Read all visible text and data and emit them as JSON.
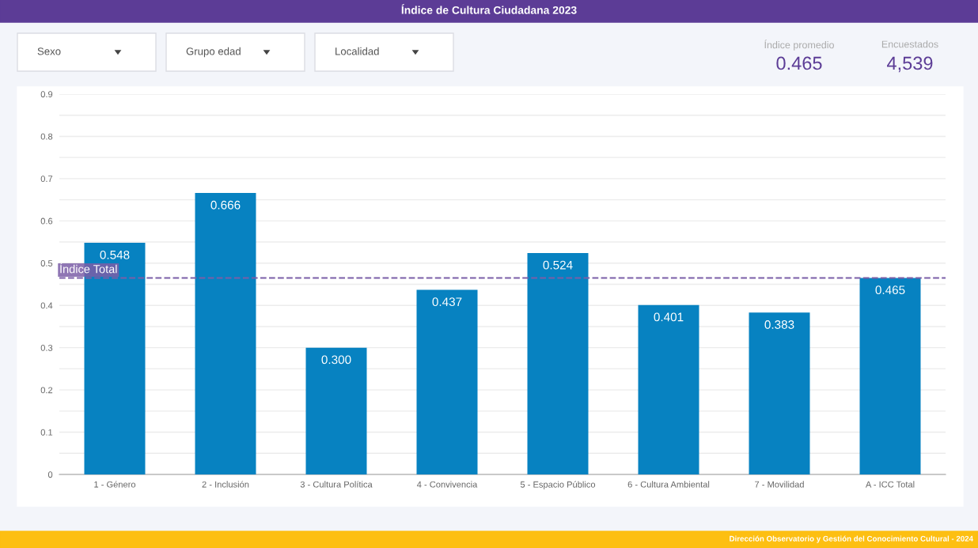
{
  "chart_data": [
    {
      "type": "other",
      "annotations": [
        "Sexo",
        "Grupo edad",
        "Localidad"
      ]
    },
    {
      "type": "other",
      "annotations": [
        "Índice promedio",
        "0.465",
        "Encuestados",
        "4,539"
      ]
    },
    {
      "type": "bar",
      "title": "Índice de Cultura Ciudadana 2023",
      "categories": [
        "1 - Género",
        "2 - Inclusión",
        "3 - Cultura Política",
        "4 - Convivencia",
        "5 - Espacio Público",
        "6 - Cultura Ambiental",
        "7 - Movilidad",
        "A - ICC Total"
      ],
      "values": [
        0.548,
        0.666,
        0.3,
        0.437,
        0.524,
        0.401,
        0.383,
        0.465
      ],
      "color": "#0782c1",
      "value_labels": [
        "0.548",
        "0.666",
        "0.300",
        "0.437",
        "0.524",
        "0.401",
        "0.383",
        "0.465"
      ],
      "ylim": [
        0,
        0.9
      ],
      "yticks": [
        0,
        {
          "value": 0.05,
          "label": null
        },
        0.1,
        {
          "value": 0.15,
          "label": null
        },
        0.2,
        {
          "value": 0.25,
          "label": null
        },
        0.3,
        {
          "value": 0.35,
          "label": null
        },
        0.4,
        {
          "value": 0.45,
          "label": null
        },
        0.5,
        {
          "value": 0.55,
          "label": null
        },
        0.6,
        {
          "value": 0.65,
          "label": null
        },
        0.7,
        {
          "value": 0.75,
          "label": null
        },
        0.8,
        {
          "value": 0.85,
          "label": null
        },
        0.9
      ],
      "grid": "y",
      "ref_lines": [
        {
          "axis": "y",
          "value": 0.465,
          "label": "Índice Total",
          "color": "#7b5ea7",
          "line_style": "dashed"
        }
      ],
      "annotations": [
        "Dirección Observatorio y Gestión del Conocimiento Cultural - 2024"
      ]
    }
  ]
}
